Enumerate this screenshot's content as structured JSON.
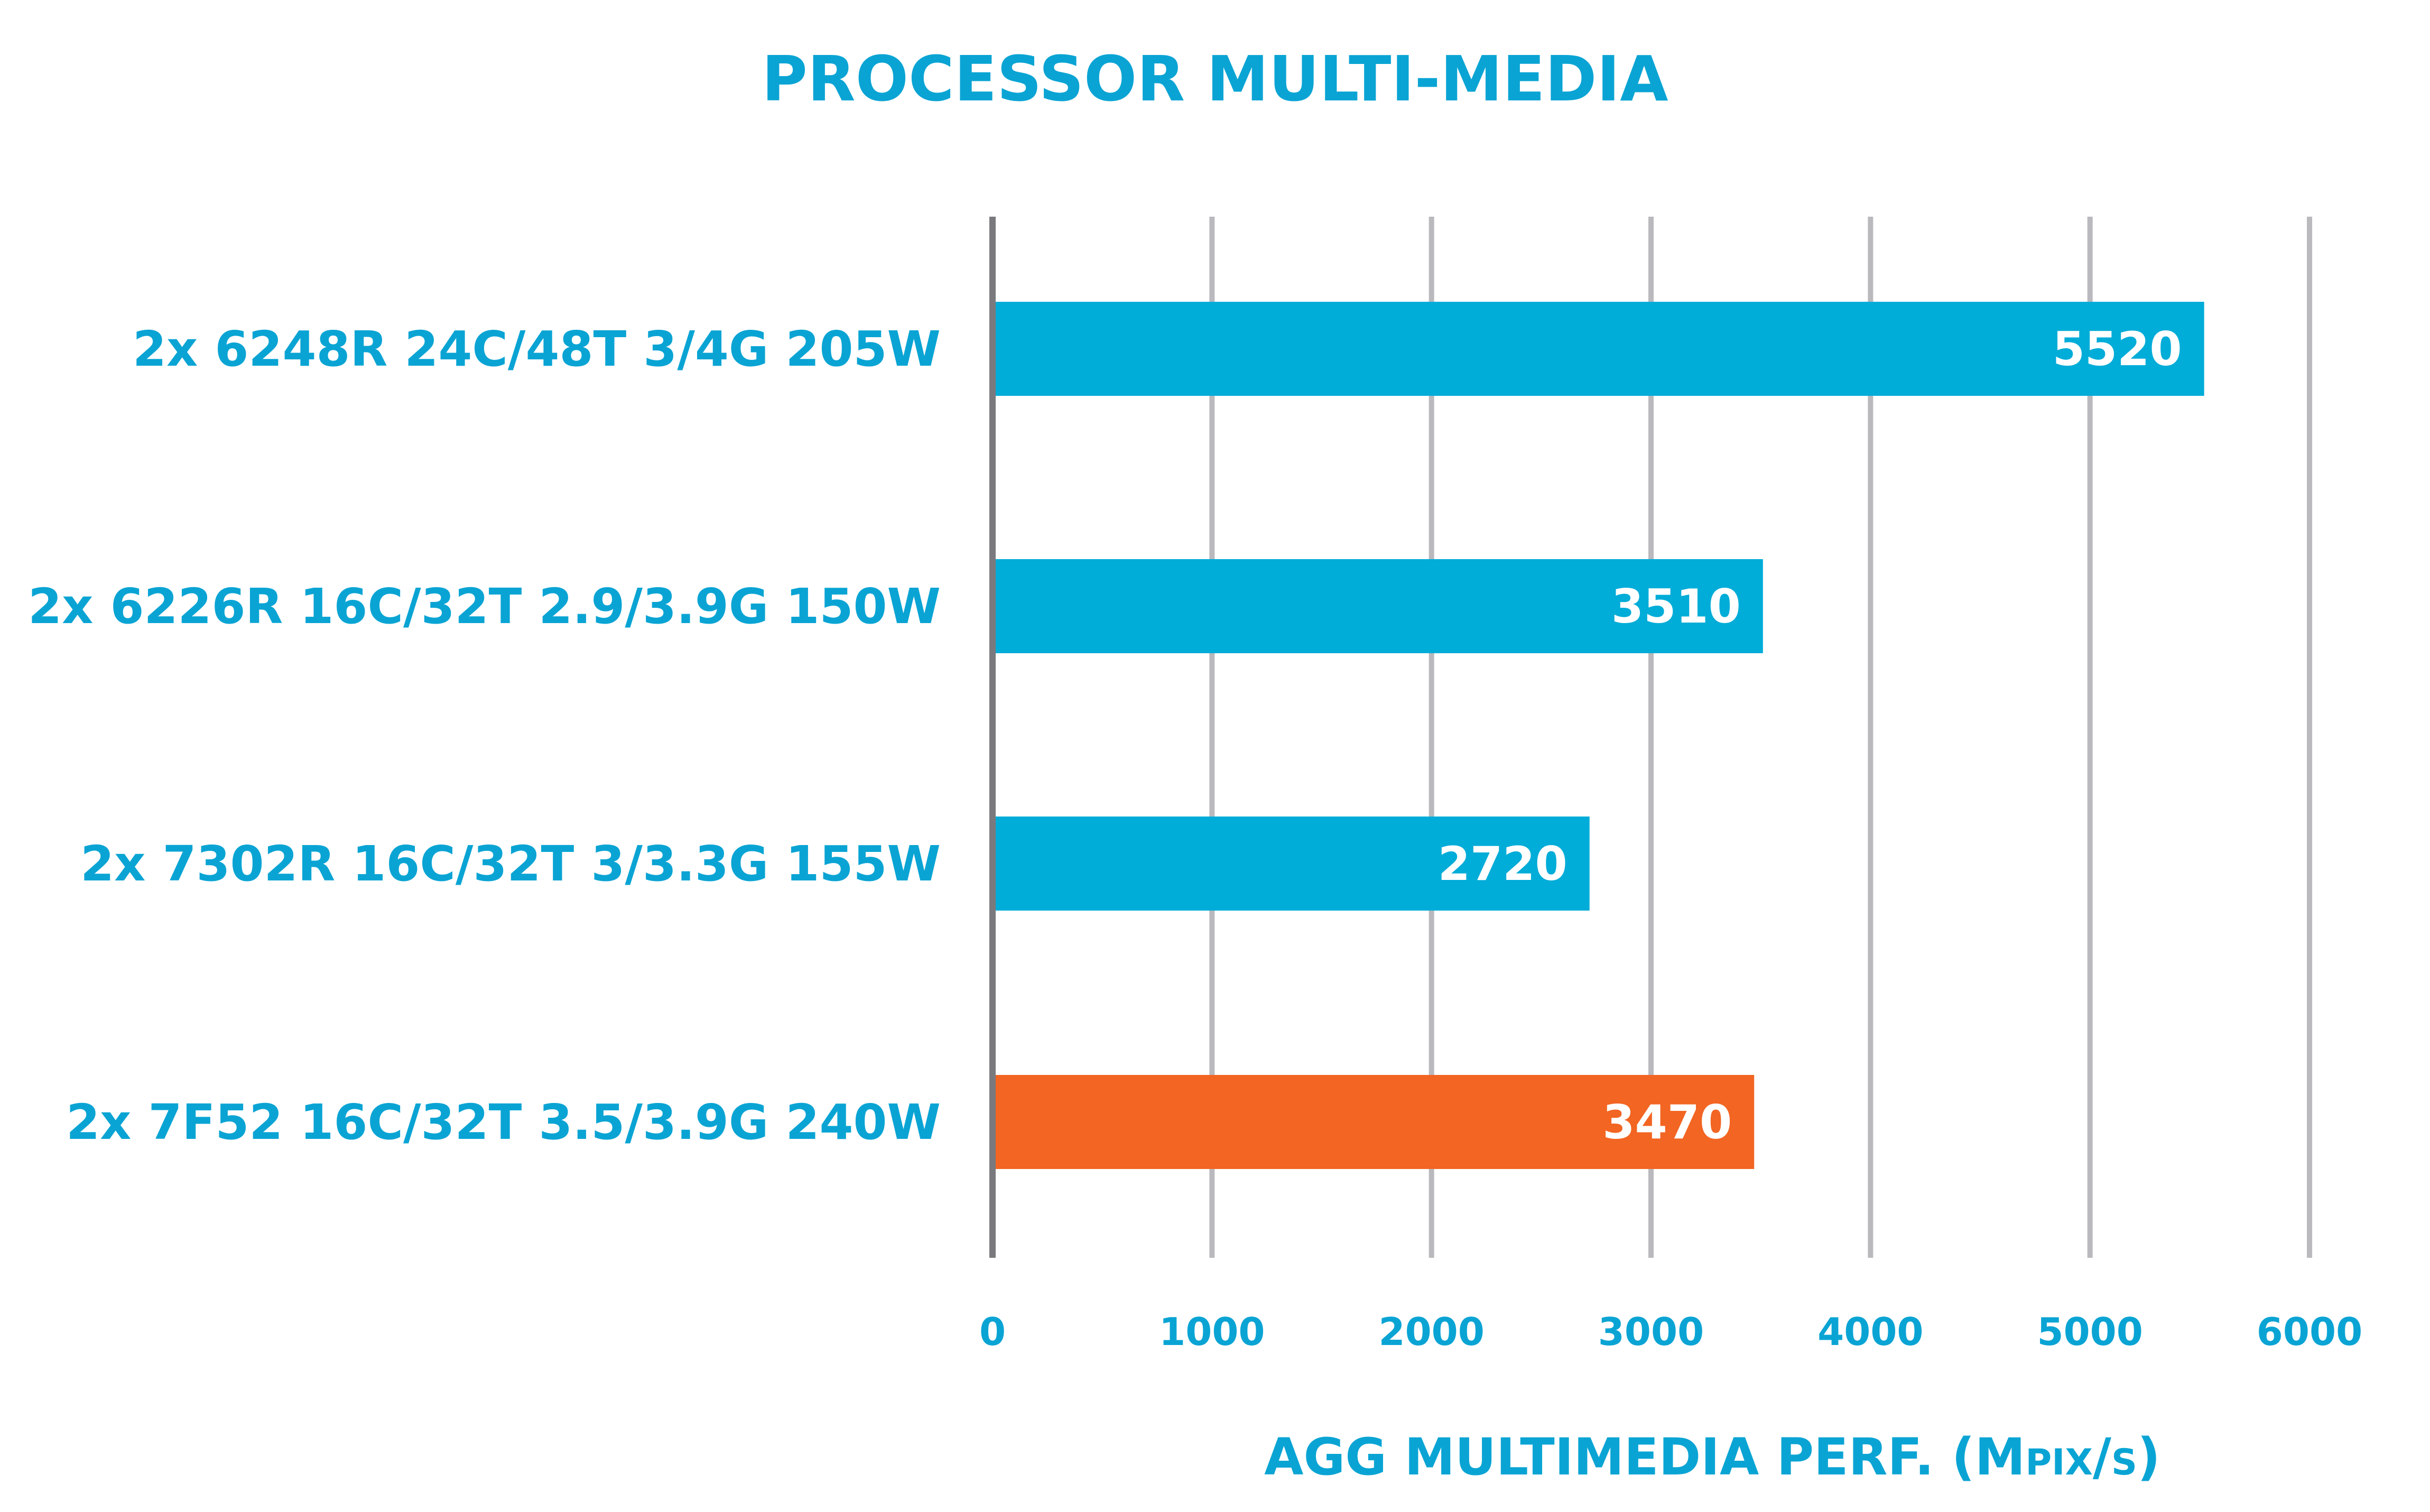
{
  "chart_data": {
    "type": "bar",
    "orientation": "horizontal",
    "title": "PROCESSOR MULTI-MEDIA",
    "xlabel": {
      "prefix": "AGG MULTIMEDIA PERF. (",
      "unit_m": "M",
      "unit_pix": "PIX",
      "unit_sep": "/",
      "unit_s": "S",
      "suffix": ")"
    },
    "ylabel": "",
    "categories": [
      "2x 6248R 24C/48T 3/4G 205W",
      "2x 6226R 16C/32T 2.9/3.9G 150W",
      "2x 7302R 16C/32T 3/3.3G 155W",
      "2x 7F52 16C/32T 3.5/3.9G 240W"
    ],
    "values": [
      5520,
      3510,
      2720,
      3470
    ],
    "value_labels": [
      "5520",
      "3510",
      "2720",
      "3470"
    ],
    "xlim": [
      0,
      6000
    ],
    "xticks": [
      "0",
      "1000",
      "2000",
      "3000",
      "4000",
      "5000",
      "6000"
    ],
    "grid": true,
    "legend": "none",
    "colors": {
      "text": "#0aa4d4",
      "bar_default": "#00acd8",
      "bar_highlight": "#f26522",
      "highlight_index": 3,
      "grid": "#b9b9be",
      "axis": "#7a7a7e",
      "value_label": "#ffffff"
    }
  }
}
